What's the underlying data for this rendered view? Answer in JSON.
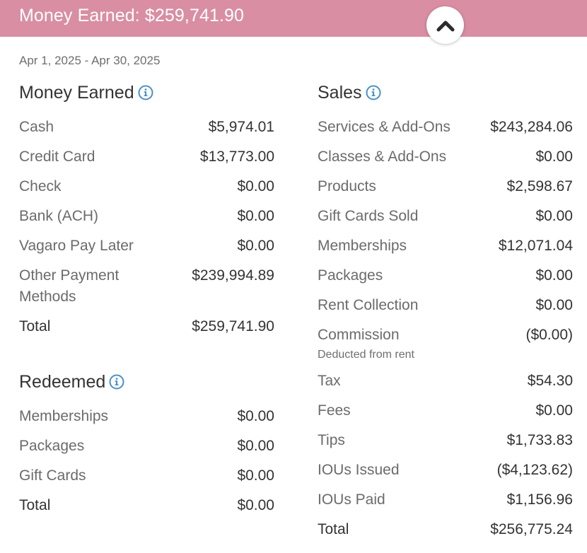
{
  "banner": {
    "title": "Money Earned: $259,741.90",
    "background_color": "#d98ea3",
    "collapse_icon": "chevron-up-icon"
  },
  "date_range": "Apr 1, 2025 - Apr 30, 2025",
  "money_earned": {
    "title": "Money Earned",
    "info_icon": "info-icon",
    "rows": [
      {
        "label": "Cash",
        "value": "$5,974.01"
      },
      {
        "label": "Credit Card",
        "value": "$13,773.00"
      },
      {
        "label": "Check",
        "value": "$0.00"
      },
      {
        "label": "Bank (ACH)",
        "value": "$0.00"
      },
      {
        "label": "Vagaro Pay Later",
        "value": "$0.00"
      },
      {
        "label": "Other Payment Methods",
        "value": "$239,994.89"
      }
    ],
    "total": {
      "label": "Total",
      "value": "$259,741.90"
    }
  },
  "redeemed": {
    "title": "Redeemed",
    "info_icon": "info-icon",
    "rows": [
      {
        "label": "Memberships",
        "value": "$0.00"
      },
      {
        "label": "Packages",
        "value": "$0.00"
      },
      {
        "label": "Gift Cards",
        "value": "$0.00"
      }
    ],
    "total": {
      "label": "Total",
      "value": "$0.00"
    }
  },
  "sales": {
    "title": "Sales",
    "info_icon": "info-icon",
    "rows": [
      {
        "label": "Services & Add-Ons",
        "value": "$243,284.06"
      },
      {
        "label": "Classes & Add-Ons",
        "value": "$0.00"
      },
      {
        "label": "Products",
        "value": "$2,598.67"
      },
      {
        "label": "Gift Cards Sold",
        "value": "$0.00"
      },
      {
        "label": "Memberships",
        "value": "$12,071.04"
      },
      {
        "label": "Packages",
        "value": "$0.00"
      },
      {
        "label": "Rent Collection",
        "value": "$0.00"
      },
      {
        "label": "Commission",
        "value": "($0.00)",
        "note": "Deducted from rent"
      },
      {
        "label": "Tax",
        "value": "$54.30"
      },
      {
        "label": "Fees",
        "value": "$0.00"
      },
      {
        "label": "Tips",
        "value": "$1,733.83"
      },
      {
        "label": "IOUs Issued",
        "value": "($4,123.62)"
      },
      {
        "label": "IOUs Paid",
        "value": "$1,156.96"
      }
    ],
    "total": {
      "label": "Total",
      "value": "$256,775.24"
    }
  },
  "colors": {
    "accent_info": "#4a90c8",
    "text_dark": "#333333",
    "text_muted": "#6b6b6b"
  }
}
